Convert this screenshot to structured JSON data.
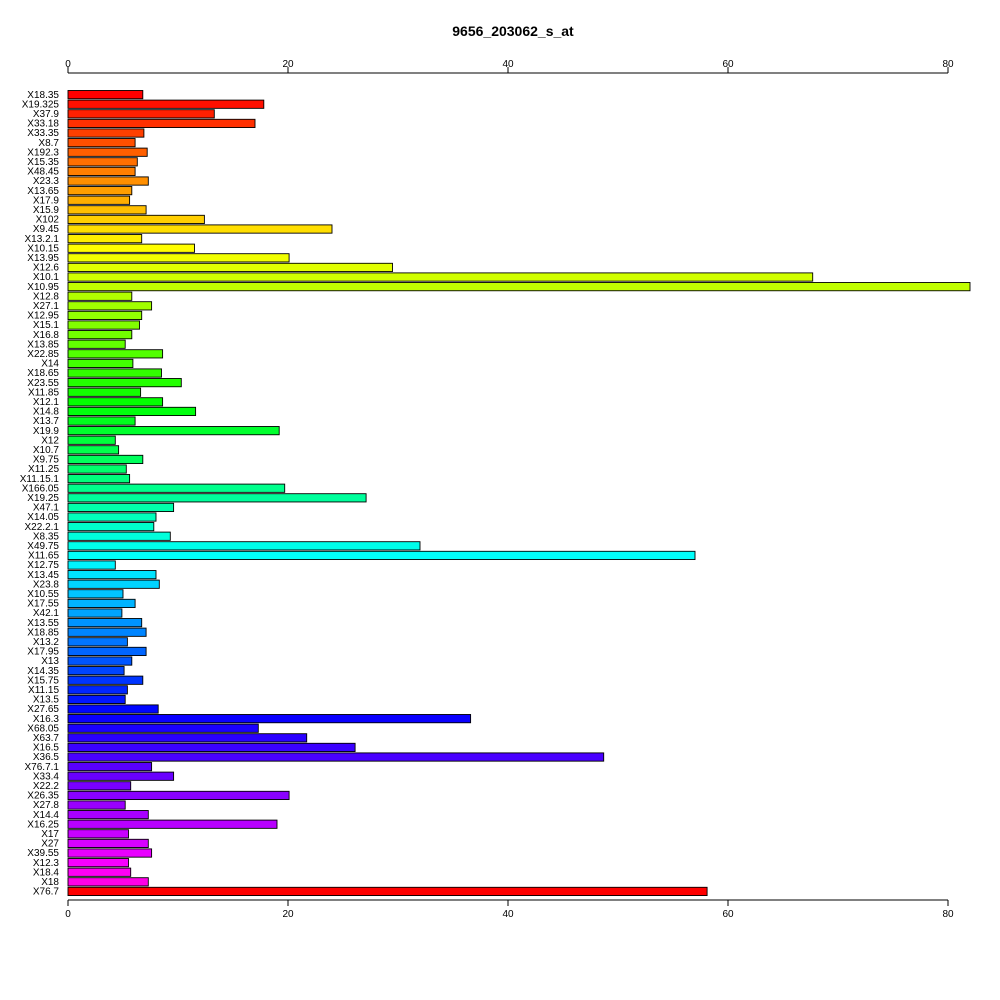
{
  "chart_data": {
    "type": "bar",
    "orientation": "horizontal",
    "title": "9656_203062_s_at",
    "xlabel": "",
    "ylabel": "",
    "xlim": [
      0,
      82
    ],
    "ticks": [
      0,
      20,
      40,
      60,
      80
    ],
    "tick_labels": [
      "0",
      "20",
      "40",
      "60",
      "80"
    ],
    "axes": [
      "top",
      "bottom"
    ],
    "grid": false,
    "legend": "none",
    "color_scheme": "rainbow",
    "categories": [
      "X18.35",
      "X19.325",
      "X37.9",
      "X33.18",
      "X33.35",
      "X8.7",
      "X192.3",
      "X15.35",
      "X48.45",
      "X23.3",
      "X13.65",
      "X17.9",
      "X15.9",
      "X102",
      "X9.45",
      "X13.2.1",
      "X10.15",
      "X13.95",
      "X12.6",
      "X10.1",
      "X10.95",
      "X12.8",
      "X27.1",
      "X12.95",
      "X15.1",
      "X16.8",
      "X13.85",
      "X22.85",
      "X14",
      "X18.65",
      "X23.55",
      "X11.85",
      "X12.1",
      "X14.8",
      "X13.7",
      "X19.9",
      "X12",
      "X10.7",
      "X9.75",
      "X11.25",
      "X11.15.1",
      "X166.05",
      "X19.25",
      "X47.1",
      "X14.05",
      "X22.2.1",
      "X8.35",
      "X49.75",
      "X11.65",
      "X12.75",
      "X13.45",
      "X23.8",
      "X10.55",
      "X17.55",
      "X42.1",
      "X13.55",
      "X18.85",
      "X13.2",
      "X17.95",
      "X13",
      "X14.35",
      "X15.75",
      "X11.15",
      "X13.5",
      "X27.65",
      "X16.3",
      "X68.05",
      "X63.7",
      "X16.5",
      "X36.5",
      "X76.7.1",
      "X33.4",
      "X22.2",
      "X26.35",
      "X27.8",
      "X14.4",
      "X16.25",
      "X17",
      "X27",
      "X39.55",
      "X12.3",
      "X18.4",
      "X18",
      "X76.7"
    ],
    "values": [
      6.8,
      17.8,
      13.3,
      17.0,
      6.9,
      6.1,
      7.2,
      6.3,
      6.1,
      7.3,
      5.8,
      5.6,
      7.1,
      12.4,
      24.0,
      6.7,
      11.5,
      20.1,
      29.5,
      67.7,
      82.0,
      5.8,
      7.6,
      6.7,
      6.5,
      5.8,
      5.2,
      8.6,
      5.9,
      8.5,
      10.3,
      6.6,
      8.6,
      11.6,
      6.1,
      19.2,
      4.3,
      4.6,
      6.8,
      5.3,
      5.6,
      19.7,
      27.1,
      9.6,
      8.0,
      7.8,
      9.3,
      32.0,
      57.0,
      4.3,
      8.0,
      8.3,
      5.0,
      6.1,
      4.9,
      6.7,
      7.1,
      5.4,
      7.1,
      5.8,
      5.1,
      6.8,
      5.4,
      5.2,
      8.2,
      36.6,
      17.3,
      21.7,
      26.1,
      48.7,
      7.6,
      9.6,
      5.7,
      20.1,
      5.2,
      7.3,
      19.0,
      5.5,
      7.3,
      7.6,
      5.5,
      5.7,
      7.3,
      58.1
    ]
  }
}
